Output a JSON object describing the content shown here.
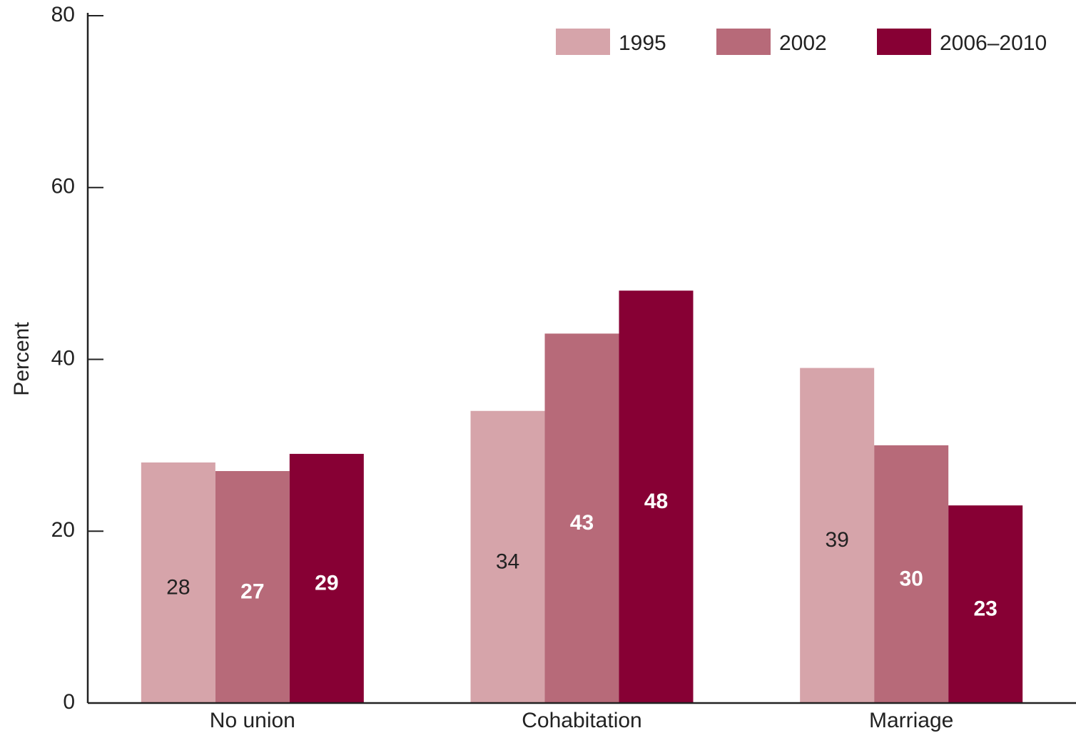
{
  "chart_data": {
    "type": "bar",
    "y_label": "Percent",
    "categories": [
      "No union",
      "Cohabitation",
      "Marriage"
    ],
    "series": [
      {
        "name": "1995",
        "color": "#d6a4aa",
        "label_color": "#222222",
        "values": [
          28,
          34,
          39
        ]
      },
      {
        "name": "2002",
        "color": "#b76a79",
        "label_color": "#ffffff",
        "values": [
          27,
          43,
          30
        ]
      },
      {
        "name": "2006–2010",
        "color": "#870034",
        "label_color": "#ffffff",
        "values": [
          29,
          48,
          23
        ]
      }
    ],
    "ylim": [
      0,
      80
    ],
    "yticks": [
      0,
      20,
      40,
      60,
      80
    ],
    "grid": false,
    "legend": "top-right"
  }
}
